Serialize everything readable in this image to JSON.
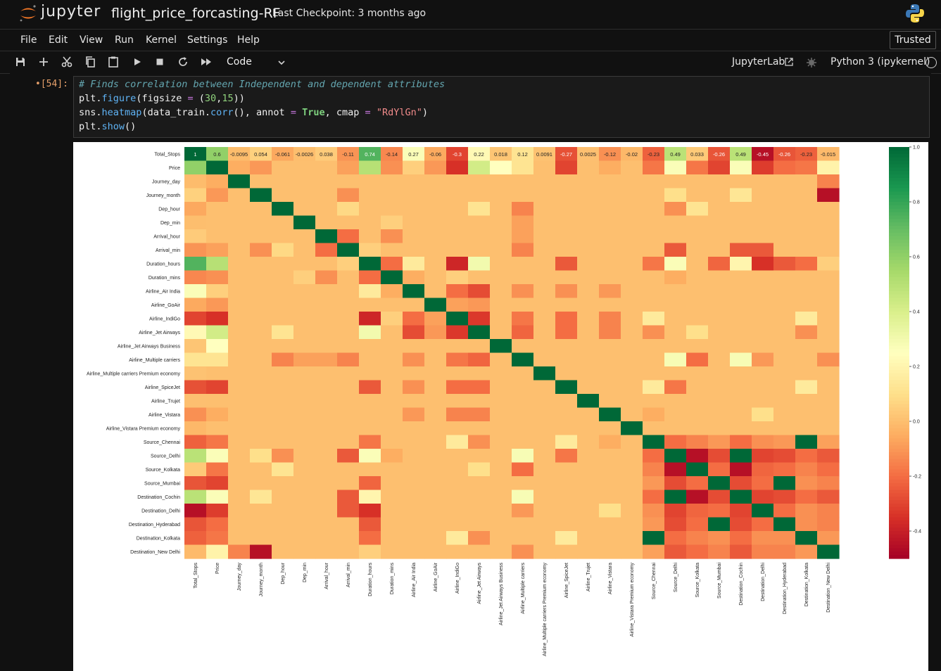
{
  "header": {
    "logo_text": "jupyter",
    "notebook_title": "flight_price_forcasting-RF",
    "checkpoint": "Last Checkpoint: 3 months ago"
  },
  "menu": {
    "items": [
      "File",
      "Edit",
      "View",
      "Run",
      "Kernel",
      "Settings",
      "Help"
    ],
    "trusted": "Trusted"
  },
  "toolbar": {
    "cell_type": "Code",
    "jupyterlab_label": "JupyterLab",
    "kernel_name": "Python 3 (ipykernel)"
  },
  "cell": {
    "prompt": "•[54]:",
    "comment": "# Finds correlation between Independent and dependent attributes",
    "line2": {
      "obj": "plt",
      "fn": "figure",
      "arg": "figsize",
      "op": "=",
      "n1": "30",
      "n2": "15"
    },
    "line3": {
      "obj": "sns",
      "fn": "heatmap",
      "arg1": "data_train",
      "fn2": "corr",
      "k1": "annot",
      "op": "=",
      "v1": "True",
      "k2": "cmap",
      "v2": "\"RdYlGn\""
    },
    "line4": {
      "obj": "plt",
      "fn": "show"
    }
  },
  "colors": {
    "accent_orange": "#f37726",
    "prompt_orange": "#e6a06a"
  },
  "chart_data": {
    "type": "heatmap",
    "labels": [
      "Total_Stops",
      "Price",
      "Journey_day",
      "Journey_month",
      "Dep_hour",
      "Dep_min",
      "Arrival_hour",
      "Arrival_min",
      "Duration_hours",
      "Duration_mins",
      "Airline_Air India",
      "Airline_GoAir",
      "Airline_IndiGo",
      "Airline_Jet Airways",
      "Airline_Jet Airways Business",
      "Airline_Multiple carriers",
      "Airline_Multiple carriers Premium economy",
      "Airline_SpiceJet",
      "Airline_Trujet",
      "Airline_Vistara",
      "Airline_Vistara Premium economy",
      "Source_Chennai",
      "Source_Delhi",
      "Source_Kolkata",
      "Source_Mumbai",
      "Destination_Cochin",
      "Destination_Delhi",
      "Destination_Hyderabad",
      "Destination_Kolkata",
      "Destination_New Delhi"
    ],
    "first_row_annotations": [
      "1",
      "0.6",
      "-0.0095",
      "0.054",
      "-0.061",
      "-0.0026",
      "0.038",
      "-0.11",
      "0.74",
      "-0.14",
      "0.27",
      "-0.06",
      "-0.3",
      "0.22",
      "0.018",
      "0.12",
      "0.0091",
      "-0.27",
      "0.0025",
      "-0.12",
      "-0.02",
      "-0.23",
      "0.49",
      "0.033",
      "-0.26",
      "0.49",
      "-0.45",
      "-0.26",
      "-0.23",
      "-0.015"
    ],
    "first_row_values": [
      1,
      0.6,
      -0.0095,
      0.054,
      -0.061,
      -0.0026,
      0.038,
      -0.11,
      0.74,
      -0.14,
      0.27,
      -0.06,
      -0.3,
      0.22,
      0.018,
      0.12,
      0.0091,
      -0.27,
      0.0025,
      -0.12,
      -0.02,
      -0.23,
      0.49,
      0.033,
      -0.26,
      0.49,
      -0.45,
      -0.26,
      -0.23,
      -0.015
    ],
    "extra_correlations": [
      [
        1,
        2,
        -0.05
      ],
      [
        1,
        3,
        -0.1
      ],
      [
        1,
        7,
        -0.08
      ],
      [
        1,
        8,
        0.5
      ],
      [
        1,
        9,
        -0.12
      ],
      [
        1,
        10,
        0.05
      ],
      [
        1,
        11,
        -0.1
      ],
      [
        1,
        12,
        -0.35
      ],
      [
        1,
        13,
        0.42
      ],
      [
        1,
        14,
        0.25
      ],
      [
        1,
        15,
        0.12
      ],
      [
        1,
        17,
        -0.3
      ],
      [
        1,
        19,
        -0.05
      ],
      [
        1,
        21,
        -0.18
      ],
      [
        1,
        22,
        0.27
      ],
      [
        1,
        23,
        -0.18
      ],
      [
        1,
        24,
        -0.3
      ],
      [
        1,
        25,
        0.27
      ],
      [
        1,
        26,
        -0.32
      ],
      [
        1,
        27,
        -0.2
      ],
      [
        1,
        28,
        -0.18
      ],
      [
        1,
        29,
        0.19
      ],
      [
        2,
        29,
        -0.15
      ],
      [
        3,
        7,
        -0.12
      ],
      [
        3,
        29,
        -0.45
      ],
      [
        3,
        25,
        0.13
      ],
      [
        3,
        22,
        0.1
      ],
      [
        4,
        7,
        0.08
      ],
      [
        4,
        13,
        0.12
      ],
      [
        4,
        15,
        -0.15
      ],
      [
        4,
        22,
        -0.12
      ],
      [
        4,
        23,
        0.12
      ],
      [
        5,
        9,
        0.05
      ],
      [
        5,
        15,
        -0.08
      ],
      [
        6,
        7,
        -0.2
      ],
      [
        6,
        9,
        -0.12
      ],
      [
        6,
        15,
        -0.08
      ],
      [
        7,
        8,
        0.05
      ],
      [
        7,
        15,
        -0.15
      ],
      [
        7,
        22,
        -0.25
      ],
      [
        7,
        26,
        -0.25
      ],
      [
        7,
        25,
        -0.25
      ],
      [
        8,
        9,
        -0.2
      ],
      [
        8,
        10,
        0.15
      ],
      [
        8,
        12,
        -0.38
      ],
      [
        8,
        13,
        0.3
      ],
      [
        8,
        17,
        -0.25
      ],
      [
        8,
        21,
        -0.18
      ],
      [
        8,
        22,
        0.27
      ],
      [
        8,
        24,
        -0.22
      ],
      [
        8,
        25,
        0.2
      ],
      [
        8,
        26,
        -0.35
      ],
      [
        8,
        27,
        -0.25
      ],
      [
        8,
        28,
        -0.2
      ],
      [
        8,
        29,
        0.05
      ],
      [
        9,
        10,
        -0.05
      ],
      [
        9,
        12,
        0.05
      ],
      [
        9,
        22,
        -0.05
      ],
      [
        10,
        12,
        -0.2
      ],
      [
        10,
        13,
        -0.28
      ],
      [
        10,
        15,
        -0.12
      ],
      [
        10,
        17,
        -0.12
      ],
      [
        10,
        19,
        -0.1
      ],
      [
        11,
        12,
        -0.08
      ],
      [
        11,
        13,
        -0.1
      ],
      [
        12,
        13,
        -0.33
      ],
      [
        12,
        15,
        -0.18
      ],
      [
        12,
        17,
        -0.2
      ],
      [
        12,
        19,
        -0.15
      ],
      [
        12,
        21,
        0.15
      ],
      [
        12,
        28,
        0.15
      ],
      [
        13,
        15,
        -0.22
      ],
      [
        13,
        17,
        -0.2
      ],
      [
        13,
        19,
        -0.15
      ],
      [
        13,
        21,
        -0.12
      ],
      [
        13,
        23,
        0.1
      ],
      [
        13,
        28,
        -0.12
      ],
      [
        15,
        22,
        0.28
      ],
      [
        15,
        23,
        -0.2
      ],
      [
        15,
        25,
        0.28
      ],
      [
        15,
        26,
        -0.1
      ],
      [
        15,
        29,
        -0.12
      ],
      [
        17,
        21,
        0.15
      ],
      [
        17,
        22,
        -0.18
      ],
      [
        17,
        28,
        0.15
      ],
      [
        19,
        21,
        -0.05
      ],
      [
        19,
        26,
        0.1
      ],
      [
        21,
        22,
        -0.2
      ],
      [
        21,
        23,
        -0.15
      ],
      [
        21,
        24,
        -0.1
      ],
      [
        21,
        25,
        -0.2
      ],
      [
        21,
        26,
        -0.12
      ],
      [
        21,
        27,
        -0.1
      ],
      [
        21,
        28,
        1
      ],
      [
        21,
        29,
        -0.08
      ],
      [
        22,
        23,
        -0.45
      ],
      [
        22,
        24,
        -0.28
      ],
      [
        22,
        25,
        1
      ],
      [
        22,
        26,
        -0.3
      ],
      [
        22,
        27,
        -0.28
      ],
      [
        22,
        28,
        -0.2
      ],
      [
        22,
        29,
        -0.25
      ],
      [
        23,
        24,
        -0.2
      ],
      [
        23,
        25,
        -0.45
      ],
      [
        23,
        26,
        -0.22
      ],
      [
        23,
        27,
        -0.2
      ],
      [
        23,
        28,
        -0.15
      ],
      [
        23,
        29,
        -0.2
      ],
      [
        24,
        25,
        -0.28
      ],
      [
        24,
        26,
        -0.2
      ],
      [
        24,
        27,
        1
      ],
      [
        24,
        28,
        -0.12
      ],
      [
        24,
        29,
        -0.15
      ],
      [
        25,
        26,
        -0.3
      ],
      [
        25,
        27,
        -0.28
      ],
      [
        25,
        28,
        -0.2
      ],
      [
        25,
        29,
        -0.25
      ],
      [
        26,
        27,
        -0.2
      ],
      [
        26,
        28,
        -0.12
      ],
      [
        26,
        29,
        -0.15
      ],
      [
        27,
        28,
        -0.12
      ],
      [
        27,
        29,
        -0.15
      ],
      [
        28,
        29,
        -0.1
      ]
    ],
    "colorbar": {
      "min": -0.5,
      "max": 1.0,
      "ticks": [
        1.0,
        0.8,
        0.6,
        0.4,
        0.2,
        0.0,
        -0.2,
        -0.4
      ],
      "tick_labels": [
        "1.0",
        "0.8",
        "0.6",
        "0.4",
        "0.2",
        "0.0",
        "-0.2",
        "-0.4"
      ]
    },
    "cmap": "RdYlGn"
  }
}
